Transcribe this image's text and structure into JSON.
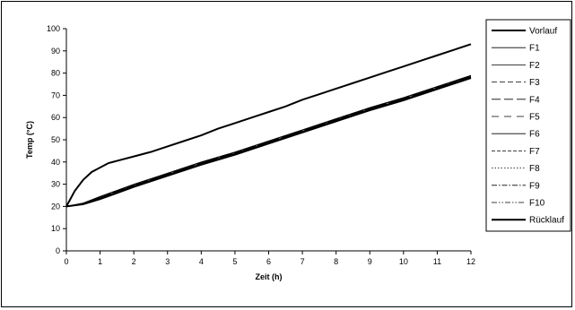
{
  "chart_data": {
    "type": "line",
    "xlabel": "Zeit (h)",
    "ylabel": "Temp (°C)",
    "xlim": [
      0,
      12
    ],
    "ylim": [
      0,
      100
    ],
    "xticks": [
      0,
      1,
      2,
      3,
      4,
      5,
      6,
      7,
      8,
      9,
      10,
      11,
      12
    ],
    "yticks": [
      0,
      10,
      20,
      30,
      40,
      50,
      60,
      70,
      80,
      90,
      100
    ],
    "grid": false,
    "legend_position": "right",
    "series": [
      {
        "name": "Vorlauf",
        "dash": "solid-thick",
        "x": [
          0,
          0.25,
          0.5,
          0.75,
          1,
          1.25,
          1.5,
          2,
          2.5,
          3,
          3.5,
          4,
          4.5,
          5,
          5.5,
          6,
          6.5,
          7,
          7.5,
          8,
          8.5,
          9,
          9.5,
          10,
          10.5,
          11,
          11.5,
          12
        ],
        "y": [
          20,
          27,
          32,
          35.5,
          37.5,
          39.5,
          40.5,
          42.5,
          44.5,
          47,
          49.5,
          52,
          55,
          57.5,
          60,
          62.5,
          65,
          68,
          70.5,
          73,
          75.5,
          78,
          80.5,
          83,
          85.5,
          88,
          90.5,
          93
        ]
      },
      {
        "name": "F1",
        "dash": "solid-thin",
        "x": [
          0,
          0.5,
          1,
          2,
          3,
          4,
          5,
          6,
          7,
          8,
          9,
          10,
          11,
          12
        ],
        "y": [
          20,
          21.5,
          24.5,
          30,
          35,
          40,
          44.5,
          49.5,
          54.5,
          59.5,
          64.5,
          69,
          74,
          79
        ]
      },
      {
        "name": "F2",
        "dash": "solid-thin",
        "x": [
          0,
          0.5,
          1,
          2,
          3,
          4,
          5,
          6,
          7,
          8,
          9,
          10,
          11,
          12
        ],
        "y": [
          20,
          21.5,
          24.3,
          29.8,
          34.8,
          39.8,
          44.3,
          49.3,
          54.3,
          59.3,
          64.3,
          68.8,
          73.8,
          78.8
        ]
      },
      {
        "name": "F3",
        "dash": "dashed",
        "x": [
          0,
          0.5,
          1,
          2,
          3,
          4,
          5,
          6,
          7,
          8,
          9,
          10,
          11,
          12
        ],
        "y": [
          20,
          21.3,
          24.1,
          29.6,
          34.6,
          39.6,
          44.1,
          49.1,
          54.1,
          59.1,
          64.1,
          68.6,
          73.6,
          78.6
        ]
      },
      {
        "name": "F4",
        "dash": "longdash",
        "x": [
          0,
          0.5,
          1,
          2,
          3,
          4,
          5,
          6,
          7,
          8,
          9,
          10,
          11,
          12
        ],
        "y": [
          20,
          21.3,
          24,
          29.5,
          34.5,
          39.5,
          44,
          49,
          54,
          59,
          64,
          68.5,
          73.5,
          78.5
        ]
      },
      {
        "name": "F5",
        "dash": "dashed-wide",
        "x": [
          0,
          0.5,
          1,
          2,
          3,
          4,
          5,
          6,
          7,
          8,
          9,
          10,
          11,
          12
        ],
        "y": [
          20,
          21.2,
          23.9,
          29.4,
          34.4,
          39.4,
          43.9,
          48.9,
          53.9,
          58.9,
          63.9,
          68.4,
          73.4,
          78.4
        ]
      },
      {
        "name": "F6",
        "dash": "solid-thin",
        "x": [
          0,
          0.5,
          1,
          2,
          3,
          4,
          5,
          6,
          7,
          8,
          9,
          10,
          11,
          12
        ],
        "y": [
          20,
          21.2,
          23.8,
          29.3,
          34.3,
          39.3,
          43.8,
          48.8,
          53.8,
          58.8,
          63.8,
          68.3,
          73.3,
          78.3
        ]
      },
      {
        "name": "F7",
        "dash": "dashed-short",
        "x": [
          0,
          0.5,
          1,
          2,
          3,
          4,
          5,
          6,
          7,
          8,
          9,
          10,
          11,
          12
        ],
        "y": [
          20,
          21.1,
          23.7,
          29.2,
          34.2,
          39.2,
          43.7,
          48.7,
          53.7,
          58.7,
          63.7,
          68.2,
          73.2,
          78.2
        ]
      },
      {
        "name": "F8",
        "dash": "dotted",
        "x": [
          0,
          0.5,
          1,
          2,
          3,
          4,
          5,
          6,
          7,
          8,
          9,
          10,
          11,
          12
        ],
        "y": [
          20,
          21.1,
          23.6,
          29.1,
          34.1,
          39.1,
          43.6,
          48.6,
          53.6,
          58.6,
          63.6,
          68.1,
          73.1,
          78.1
        ]
      },
      {
        "name": "F9",
        "dash": "dashdot",
        "x": [
          0,
          0.5,
          1,
          2,
          3,
          4,
          5,
          6,
          7,
          8,
          9,
          10,
          11,
          12
        ],
        "y": [
          20,
          21,
          23.5,
          29,
          34,
          39,
          43.5,
          48.5,
          53.5,
          58.5,
          63.5,
          68,
          73,
          78
        ]
      },
      {
        "name": "F10",
        "dash": "dashdotdot",
        "x": [
          0,
          0.5,
          1,
          2,
          3,
          4,
          5,
          6,
          7,
          8,
          9,
          10,
          11,
          12
        ],
        "y": [
          20,
          21,
          23.4,
          28.9,
          33.9,
          38.9,
          43.4,
          48.4,
          53.4,
          58.4,
          63.4,
          67.9,
          72.9,
          77.9
        ]
      },
      {
        "name": "Rücklauf",
        "dash": "solid-thick",
        "x": [
          0,
          0.5,
          1,
          2,
          3,
          4,
          5,
          6,
          7,
          8,
          9,
          10,
          11,
          12
        ],
        "y": [
          20,
          21,
          23.3,
          28.8,
          33.8,
          38.8,
          43.3,
          48.3,
          53.3,
          58.3,
          63.3,
          67.8,
          72.8,
          77.8
        ]
      }
    ]
  }
}
